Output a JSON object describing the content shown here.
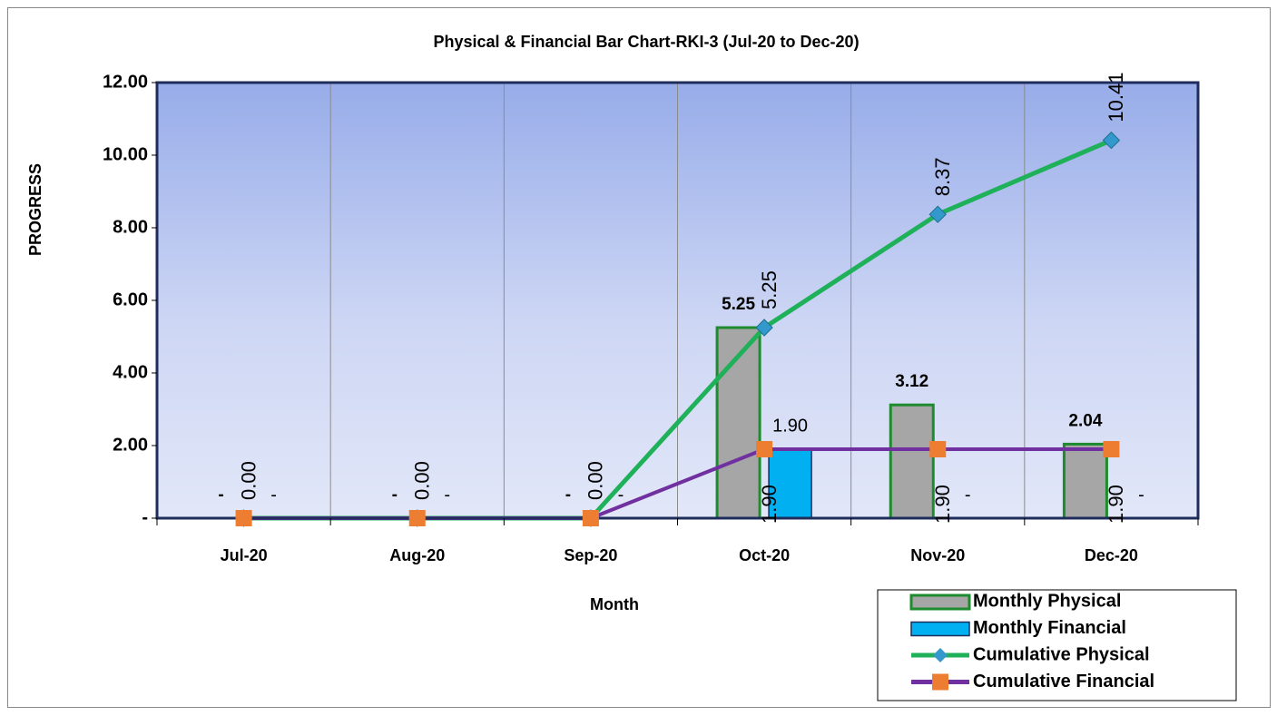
{
  "chart_data": {
    "type": "bar_line",
    "title": "Physical & Financial Bar Chart-RKI-3 (Jul-20 to Dec-20)",
    "y_label": "PROGRESS",
    "x_label": "Month",
    "categories": [
      "Jul-20",
      "Aug-20",
      "Sep-20",
      "Oct-20",
      "Nov-20",
      "Dec-20"
    ],
    "series": [
      {
        "name": "Monthly Physical",
        "kind": "bar",
        "color": "#a6a6a6",
        "edge": "#1e8c2e",
        "values": [
          0,
          0,
          0,
          5.25,
          3.12,
          2.04
        ],
        "value_labels": [
          "-",
          "-",
          "-",
          "5.25",
          "3.12",
          "2.04"
        ]
      },
      {
        "name": "Monthly Financial",
        "kind": "bar",
        "color": "#00b0f0",
        "edge": "#1f2d5c",
        "values": [
          0,
          0,
          0,
          1.9,
          0,
          0
        ],
        "value_labels": [
          "-",
          "-",
          "-",
          "1.90",
          "-",
          "-"
        ]
      },
      {
        "name": "Cumulative Physical",
        "kind": "line",
        "color": "#1fb15a",
        "marker_color": "#3399cc",
        "values": [
          0,
          0,
          0,
          5.25,
          8.37,
          10.41
        ],
        "value_labels": [
          "0.00",
          "0.00",
          "0.00",
          "5.25",
          "8.37",
          "10.41"
        ]
      },
      {
        "name": "Cumulative Financial",
        "kind": "line",
        "color": "#7030a0",
        "marker_color": "#ed7d31",
        "values": [
          0,
          0,
          0,
          1.9,
          1.9,
          1.9
        ],
        "value_labels": [
          null,
          null,
          null,
          "1.90",
          "1.90",
          "1.90"
        ]
      }
    ],
    "ylim": [
      0,
      12
    ],
    "yticks": [
      {
        "value": 0,
        "label": "-"
      },
      {
        "value": 2,
        "label": "2.00"
      },
      {
        "value": 4,
        "label": "4.00"
      },
      {
        "value": 6,
        "label": "6.00"
      },
      {
        "value": 8,
        "label": "8.00"
      },
      {
        "value": 10,
        "label": "10.00"
      },
      {
        "value": 12,
        "label": "12.00"
      }
    ],
    "grid": true
  }
}
